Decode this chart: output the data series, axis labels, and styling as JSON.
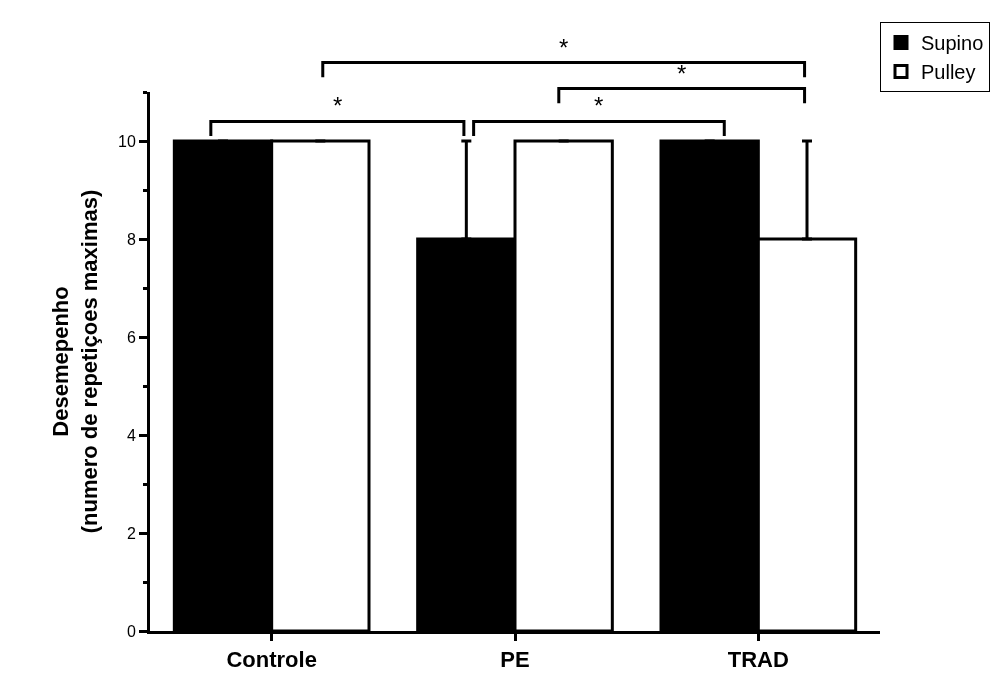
{
  "chart_data": {
    "type": "bar",
    "categories": [
      "Controle",
      "PE",
      "TRAD"
    ],
    "ylabel": "Desemepenho\n(numero de repetiçoes maximas)",
    "series": [
      {
        "name": "Supino",
        "color": "#000000",
        "values": [
          10,
          8,
          10
        ],
        "errors": [
          null,
          [
            8,
            10
          ],
          null
        ]
      },
      {
        "name": "Pulley",
        "color": "#ffffff",
        "values": [
          10,
          10,
          8
        ],
        "errors": [
          null,
          null,
          [
            8,
            10
          ]
        ]
      }
    ],
    "ylim": [
      0,
      11
    ],
    "yticks": [
      0,
      2,
      4,
      6,
      8,
      10
    ],
    "annotations": [
      "*",
      "*",
      "*",
      "*"
    ],
    "legend": "top right"
  }
}
